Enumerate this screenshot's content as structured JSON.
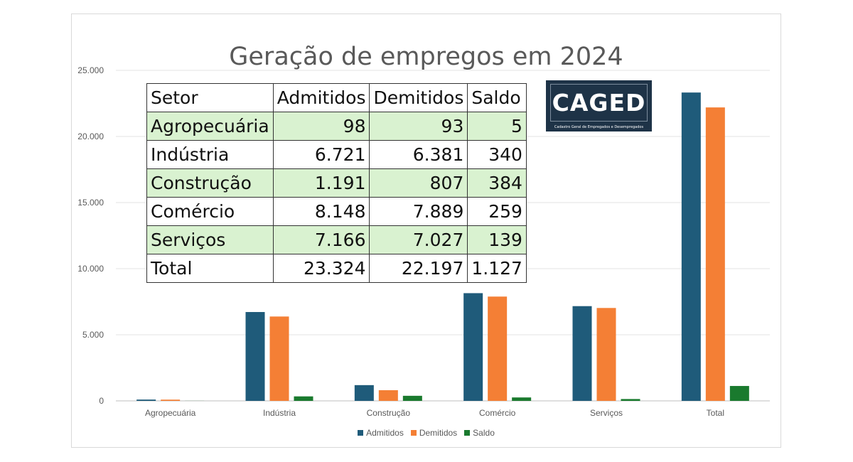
{
  "chart_data": {
    "type": "bar",
    "title": "Geração de empregos em 2024",
    "categories": [
      "Agropecuária",
      "Indústria",
      "Construção",
      "Comércio",
      "Serviços",
      "Total"
    ],
    "series": [
      {
        "name": "Admitidos",
        "color": "#1f5b7a",
        "values": [
          98,
          6721,
          1191,
          8148,
          7166,
          23324
        ]
      },
      {
        "name": "Demitidos",
        "color": "#f47f35",
        "values": [
          93,
          6381,
          807,
          7889,
          7027,
          22197
        ]
      },
      {
        "name": "Saldo",
        "color": "#1a7a2e",
        "values": [
          5,
          340,
          384,
          259,
          139,
          1127
        ]
      }
    ],
    "ylim": [
      0,
      25000
    ],
    "yticks": [
      0,
      5000,
      10000,
      15000,
      20000,
      25000
    ],
    "ytick_labels": [
      "0",
      "5.000",
      "10.000",
      "15.000",
      "20.000",
      "25.000"
    ],
    "grid": true,
    "legend": "bottom"
  },
  "table": {
    "headers": [
      "Setor",
      "Admitidos",
      "Demitidos",
      "Saldo"
    ],
    "rows": [
      [
        "Agropecuária",
        "98",
        "93",
        "5"
      ],
      [
        "Indústria",
        "6.721",
        "6.381",
        "340"
      ],
      [
        "Construção",
        "1.191",
        "807",
        "384"
      ],
      [
        "Comércio",
        "8.148",
        "7.889",
        "259"
      ],
      [
        "Serviços",
        "7.166",
        "7.027",
        "139"
      ],
      [
        "Total",
        "23.324",
        "22.197",
        "1.127"
      ]
    ]
  },
  "logo": {
    "word": "CAGED",
    "subtitle": "Cadastro Geral de Empregados e Desempregados"
  }
}
